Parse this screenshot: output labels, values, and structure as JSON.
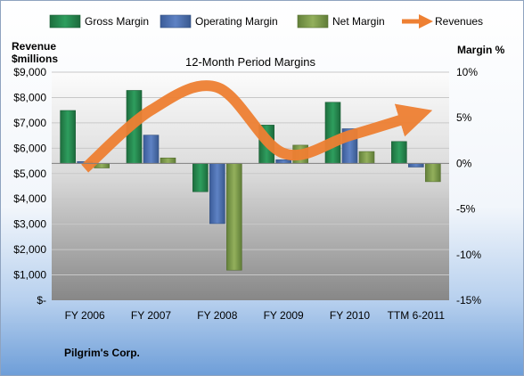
{
  "chart_data": {
    "type": "bar",
    "title": "12-Month Period Margins",
    "company": "Pilgrim's Corp.",
    "left_axis_title": [
      "Revenue",
      "$millions"
    ],
    "right_axis_title": "Margin %",
    "categories": [
      "FY 2006",
      "FY 2007",
      "FY 2008",
      "FY 2009",
      "FY 2010",
      "TTM 6-2011"
    ],
    "left_axis": {
      "min": 0,
      "max": 9000,
      "ticks": [
        {
          "value": 9000,
          "label": "$9,000"
        },
        {
          "value": 8000,
          "label": "$8,000"
        },
        {
          "value": 7000,
          "label": "$7,000"
        },
        {
          "value": 6000,
          "label": "$6,000"
        },
        {
          "value": 5000,
          "label": "$5,000"
        },
        {
          "value": 4000,
          "label": "$4,000"
        },
        {
          "value": 3000,
          "label": "$3,000"
        },
        {
          "value": 2000,
          "label": "$2,000"
        },
        {
          "value": 1000,
          "label": "$1,000"
        },
        {
          "value": 0,
          "label": "$-"
        }
      ]
    },
    "right_axis": {
      "min": -15,
      "max": 10,
      "ticks": [
        {
          "value": 10,
          "label": "10%"
        },
        {
          "value": 5,
          "label": "5%"
        },
        {
          "value": 0,
          "label": "0%"
        },
        {
          "value": -5,
          "label": "-5%"
        },
        {
          "value": -10,
          "label": "-10%"
        },
        {
          "value": -15,
          "label": "-15%"
        }
      ]
    },
    "series": [
      {
        "name": "Gross Margin",
        "axis": "right",
        "kind": "bar",
        "color": "#1E8A50",
        "values": [
          5.8,
          8.0,
          -3.1,
          4.2,
          6.7,
          2.4
        ]
      },
      {
        "name": "Operating Margin",
        "axis": "right",
        "kind": "bar",
        "color": "#4A6EB0",
        "values": [
          0.2,
          3.1,
          -6.6,
          0.4,
          3.8,
          -0.4
        ]
      },
      {
        "name": "Net Margin",
        "axis": "right",
        "kind": "bar",
        "color": "#7E9C49",
        "values": [
          -0.5,
          0.6,
          -11.7,
          2.0,
          1.3,
          -2.0
        ]
      },
      {
        "name": "Revenues",
        "axis": "left",
        "kind": "line",
        "color": "#EE8033",
        "values": [
          5200,
          7500,
          8400,
          5800,
          6500,
          7300
        ]
      }
    ],
    "legend_position": "top",
    "grid": true
  }
}
